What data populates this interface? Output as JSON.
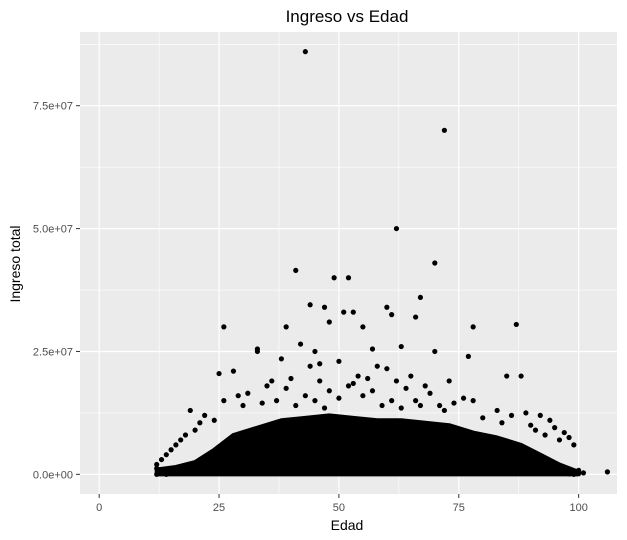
{
  "chart_data": {
    "type": "scatter",
    "title": "Ingreso vs Edad",
    "xlabel": "Edad",
    "ylabel": "Ingreso total",
    "xlim": [
      -4,
      108
    ],
    "ylim": [
      -4000000,
      90000000
    ],
    "x_ticks": [
      0,
      25,
      50,
      75,
      100
    ],
    "x_tick_labels": [
      "0",
      "25",
      "50",
      "75",
      "100"
    ],
    "y_ticks": [
      0,
      25000000,
      50000000,
      75000000
    ],
    "y_tick_labels": [
      "0.0e+00",
      "2.5e+07",
      "5.0e+07",
      "7.5e+07"
    ],
    "grid": true,
    "legend": "none",
    "point_color": "#000000",
    "panel_color": "#EBEBEB",
    "grid_color": "#FFFFFF",
    "points": [
      [
        43,
        86000000
      ],
      [
        72,
        70000000
      ],
      [
        62,
        50000000
      ],
      [
        70,
        43000000
      ],
      [
        41,
        41500000
      ],
      [
        49,
        40000000
      ],
      [
        52,
        40000000
      ],
      [
        67,
        36000000
      ],
      [
        44,
        34500000
      ],
      [
        47,
        34000000
      ],
      [
        51,
        33000000
      ],
      [
        53,
        33000000
      ],
      [
        60,
        34000000
      ],
      [
        61,
        32500000
      ],
      [
        66,
        32000000
      ],
      [
        26,
        30000000
      ],
      [
        39,
        30000000
      ],
      [
        48,
        31000000
      ],
      [
        55,
        30000000
      ],
      [
        78,
        30000000
      ],
      [
        87,
        30500000
      ],
      [
        33,
        25500000
      ],
      [
        33,
        25000000
      ],
      [
        63,
        26000000
      ],
      [
        70,
        25000000
      ],
      [
        42,
        26500000
      ],
      [
        45,
        25000000
      ],
      [
        57,
        25500000
      ],
      [
        77,
        24000000
      ],
      [
        38,
        23500000
      ],
      [
        50,
        23000000
      ],
      [
        44,
        22000000
      ],
      [
        46,
        22500000
      ],
      [
        58,
        22000000
      ],
      [
        60,
        21500000
      ],
      [
        25,
        20500000
      ],
      [
        28,
        21000000
      ],
      [
        54,
        20000000
      ],
      [
        65,
        20000000
      ],
      [
        85,
        20000000
      ],
      [
        88,
        20000000
      ],
      [
        36,
        19000000
      ],
      [
        40,
        19500000
      ],
      [
        46,
        19000000
      ],
      [
        53,
        18500000
      ],
      [
        56,
        19500000
      ],
      [
        62,
        19000000
      ],
      [
        68,
        18000000
      ],
      [
        73,
        19000000
      ],
      [
        35,
        18000000
      ],
      [
        31,
        16500000
      ],
      [
        29,
        16000000
      ],
      [
        39,
        17500000
      ],
      [
        48,
        17000000
      ],
      [
        52,
        18000000
      ],
      [
        57,
        17000000
      ],
      [
        64,
        17500000
      ],
      [
        69,
        16500000
      ],
      [
        76,
        15500000
      ],
      [
        78,
        15000000
      ],
      [
        43,
        16000000
      ],
      [
        45,
        15000000
      ],
      [
        50,
        15500000
      ],
      [
        55,
        16000000
      ],
      [
        61,
        15000000
      ],
      [
        66,
        15000000
      ],
      [
        71,
        14000000
      ],
      [
        74,
        14500000
      ],
      [
        26,
        15000000
      ],
      [
        19,
        13000000
      ],
      [
        30,
        14000000
      ],
      [
        34,
        14500000
      ],
      [
        37,
        15000000
      ],
      [
        41,
        14000000
      ],
      [
        47,
        13500000
      ],
      [
        59,
        14000000
      ],
      [
        63,
        13500000
      ],
      [
        67,
        14000000
      ],
      [
        72,
        13000000
      ],
      [
        83,
        13000000
      ],
      [
        86,
        12000000
      ],
      [
        89,
        12500000
      ],
      [
        92,
        12000000
      ],
      [
        94,
        11000000
      ],
      [
        80,
        11500000
      ],
      [
        84,
        10500000
      ],
      [
        90,
        10000000
      ],
      [
        22,
        12000000
      ],
      [
        24,
        11000000
      ],
      [
        21,
        10500000
      ],
      [
        95,
        9500000
      ],
      [
        97,
        8500000
      ],
      [
        98,
        7500000
      ],
      [
        99,
        6000000
      ],
      [
        96,
        7000000
      ],
      [
        93,
        8000000
      ],
      [
        91,
        9000000
      ],
      [
        20,
        9000000
      ],
      [
        18,
        8000000
      ],
      [
        17,
        7000000
      ],
      [
        16,
        6000000
      ],
      [
        15,
        5000000
      ],
      [
        14,
        4000000
      ],
      [
        13,
        3000000
      ],
      [
        12,
        2000000
      ],
      [
        12,
        1200000
      ],
      [
        13,
        1000000
      ],
      [
        106,
        500000
      ],
      [
        100,
        800000
      ],
      [
        101,
        300000
      ],
      [
        100,
        200000
      ],
      [
        12,
        0
      ],
      [
        14,
        0
      ],
      [
        99,
        0
      ],
      [
        98,
        100000
      ]
    ],
    "cloud": [
      [
        12,
        0
      ],
      [
        12,
        1000000
      ],
      [
        16,
        1500000
      ],
      [
        20,
        2500000
      ],
      [
        24,
        5000000
      ],
      [
        28,
        8000000
      ],
      [
        33,
        9500000
      ],
      [
        38,
        11000000
      ],
      [
        43,
        11500000
      ],
      [
        48,
        12000000
      ],
      [
        53,
        11500000
      ],
      [
        58,
        11000000
      ],
      [
        63,
        11000000
      ],
      [
        68,
        10500000
      ],
      [
        73,
        10000000
      ],
      [
        78,
        8500000
      ],
      [
        83,
        7500000
      ],
      [
        88,
        6000000
      ],
      [
        92,
        4000000
      ],
      [
        96,
        2000000
      ],
      [
        100,
        500000
      ],
      [
        100,
        0
      ]
    ]
  }
}
